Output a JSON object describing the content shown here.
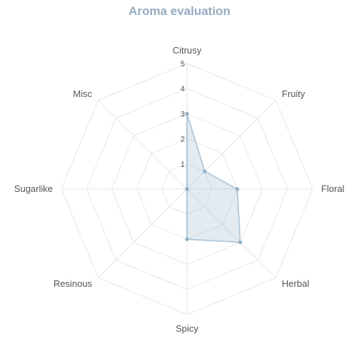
{
  "chart_data": {
    "type": "radar",
    "title": "Aroma evaluation",
    "axes": [
      "Citrusy",
      "Fruity",
      "Floral",
      "Herbal",
      "Spicy",
      "Resinous",
      "Sugarlike",
      "Misc"
    ],
    "rlim": [
      0,
      5
    ],
    "ticks": [
      "1",
      "2",
      "3",
      "4",
      "5"
    ],
    "grid": true,
    "series": [
      {
        "values": [
          3,
          1,
          2,
          3,
          2,
          0,
          0,
          0
        ],
        "color": "#8fb0c8"
      }
    ]
  }
}
